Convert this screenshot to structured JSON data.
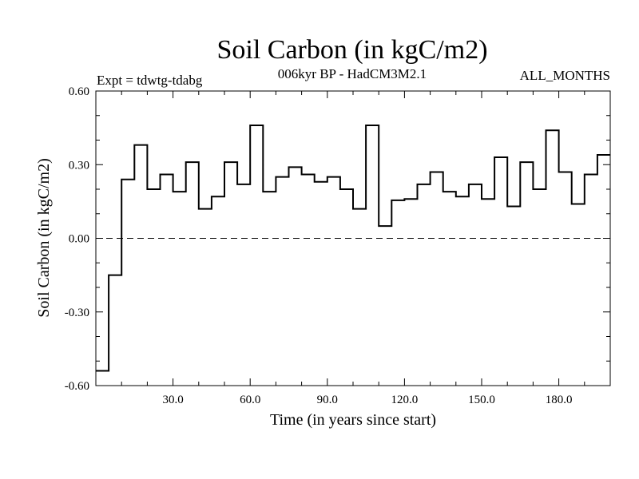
{
  "chart_data": {
    "type": "line",
    "step": true,
    "title": "Soil Carbon (in kgC/m2)",
    "subtitle": "006kyr BP - HadCM3M2.1",
    "left_note": "Expt = tdwtg-tdabg",
    "right_note": "ALL_MONTHS",
    "xlabel": "Time (in years since start)",
    "ylabel": "Soil Carbon (in kgC/m2)",
    "xlim": [
      0,
      200
    ],
    "ylim": [
      -0.6,
      0.6
    ],
    "xticks": [
      30,
      60,
      90,
      120,
      150,
      180
    ],
    "xtick_labels": [
      "30.0",
      "60.0",
      "90.0",
      "120.0",
      "150.0",
      "180.0"
    ],
    "yticks": [
      -0.6,
      -0.3,
      0.0,
      0.3,
      0.6
    ],
    "ytick_labels": [
      "-0.60",
      "-0.30",
      "0.00",
      "0.30",
      "0.60"
    ],
    "reference_line": 0.0,
    "bin_width": 5,
    "x_start": 0,
    "values": [
      -0.54,
      -0.15,
      0.24,
      0.38,
      0.2,
      0.26,
      0.19,
      0.31,
      0.12,
      0.17,
      0.31,
      0.22,
      0.46,
      0.19,
      0.25,
      0.29,
      0.26,
      0.23,
      0.25,
      0.2,
      0.12,
      0.46,
      0.05,
      0.155,
      0.16,
      0.22,
      0.27,
      0.19,
      0.17,
      0.22,
      0.16,
      0.33,
      0.13,
      0.31,
      0.2,
      0.44,
      0.27,
      0.14,
      0.26,
      0.34
    ]
  }
}
